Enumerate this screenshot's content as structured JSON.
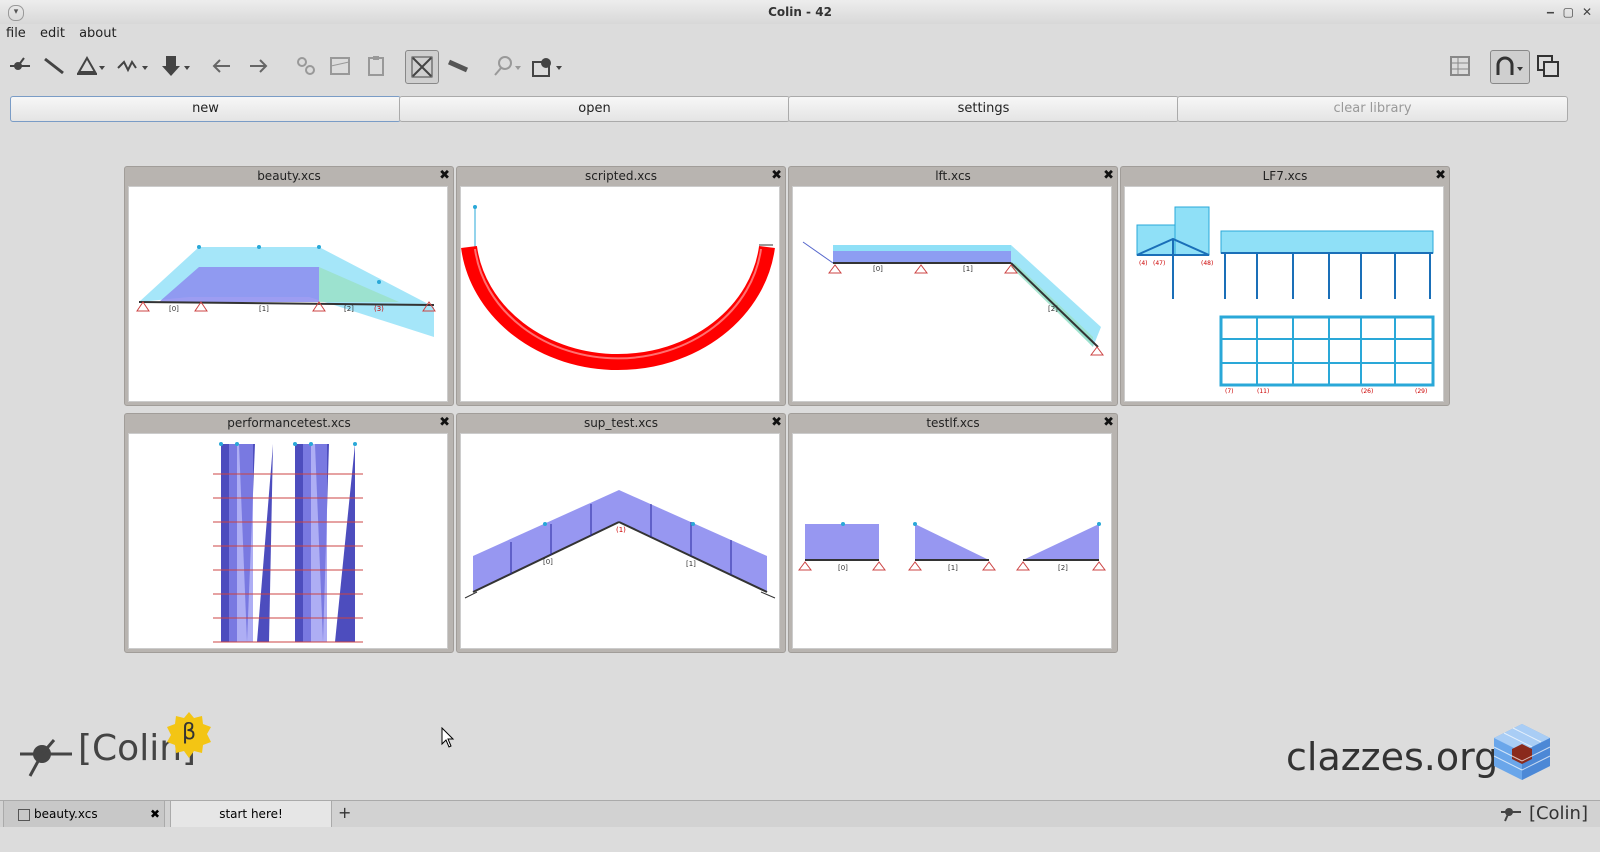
{
  "window": {
    "title": "Colin - 42"
  },
  "menu": {
    "file": "file",
    "edit": "edit",
    "about": "about"
  },
  "toolbar": {
    "tools": [
      "node-tool-icon",
      "beam-tool-icon",
      "support-tool-icon",
      "spring-tool-icon",
      "load-tool-icon",
      "undo-icon",
      "redo-icon",
      "copy-icon",
      "cut-icon",
      "paste-icon",
      "zoom-fit-icon",
      "measure-icon",
      "zoom-icon",
      "magnet-icon"
    ],
    "right_tools": [
      "table-icon",
      "snap-icon",
      "window-icon"
    ]
  },
  "actions": {
    "new": "new",
    "open": "open",
    "settings": "settings",
    "clear": "clear library"
  },
  "library": [
    {
      "name": "beauty.xcs"
    },
    {
      "name": "scripted.xcs"
    },
    {
      "name": "lft.xcs"
    },
    {
      "name": "LF7.xcs"
    },
    {
      "name": "performancetest.xcs"
    },
    {
      "name": "sup_test.xcs"
    },
    {
      "name": "testlf.xcs"
    }
  ],
  "branding": {
    "app": "[Colin]",
    "beta": "β",
    "site": "clazzes.org"
  },
  "tabs": {
    "tab1": "beauty.xcs",
    "tab2": "start here!",
    "add": "+",
    "brand": "[Colin]"
  },
  "colors": {
    "accent": "#7a9cc6",
    "load_fill": "#8c8cf0",
    "node": "#2aa8d8",
    "moment": "#ff0000"
  }
}
